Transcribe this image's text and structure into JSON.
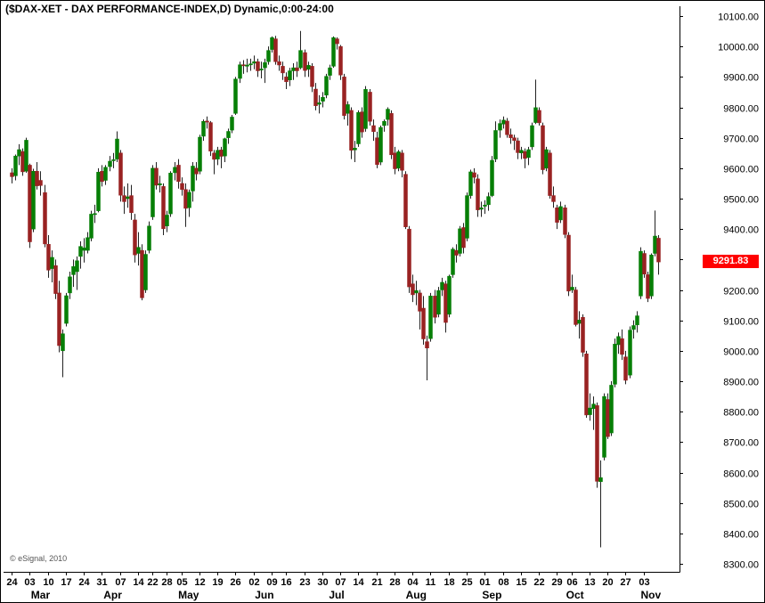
{
  "header": {
    "title": "($DAX-XET - DAX PERFORMANCE-INDEX,D) Dynamic,0:00-24:00"
  },
  "footer": {
    "copyright": "© eSignal, 2010"
  },
  "chart_data": {
    "type": "candlestick",
    "symbol": "$DAX-XET",
    "description": "DAX PERFORMANCE-INDEX",
    "interval": "D",
    "session": "0:00-24:00",
    "last_price": 9291.83,
    "last_price_label": "9291.83",
    "colors": {
      "up": "#067f06",
      "down": "#992222",
      "wick": "#222222",
      "axis": "#000000",
      "last_price_bg": "#ff0000",
      "last_price_text": "#ffffff"
    },
    "y_axis": {
      "min": 8300,
      "max": 10100,
      "step": 100,
      "ticks": [
        [
          10100,
          "10100.00"
        ],
        [
          10000,
          "10000.00"
        ],
        [
          9900,
          "9900.00"
        ],
        [
          9800,
          "9800.00"
        ],
        [
          9700,
          "9700.00"
        ],
        [
          9600,
          "9600.00"
        ],
        [
          9500,
          "9500.00"
        ],
        [
          9400,
          "9400.00"
        ],
        [
          9300,
          "9300.00"
        ],
        [
          9200,
          "9200.00"
        ],
        [
          9100,
          "9100.00"
        ],
        [
          9000,
          "9000.00"
        ],
        [
          8900,
          "8900.00"
        ],
        [
          8800,
          "8800.00"
        ],
        [
          8700,
          "8700.00"
        ],
        [
          8600,
          "8600.00"
        ],
        [
          8500,
          "8500.00"
        ],
        [
          8400,
          "8400.00"
        ],
        [
          8300,
          "8300.00"
        ]
      ]
    },
    "x_ticks": [
      [
        "24",
        0
      ],
      [
        "03",
        5
      ],
      [
        "10",
        10
      ],
      [
        "17",
        15
      ],
      [
        "24",
        20
      ],
      [
        "31",
        25
      ],
      [
        "07",
        30
      ],
      [
        "14",
        35
      ],
      [
        "22",
        39
      ],
      [
        "28",
        43
      ],
      [
        "05",
        47
      ],
      [
        "12",
        52
      ],
      [
        "19",
        57
      ],
      [
        "26",
        62
      ],
      [
        "02",
        67
      ],
      [
        "09",
        72
      ],
      [
        "16",
        76
      ],
      [
        "23",
        81
      ],
      [
        "30",
        86
      ],
      [
        "07",
        91
      ],
      [
        "14",
        96
      ],
      [
        "21",
        101
      ],
      [
        "28",
        106
      ],
      [
        "04",
        111
      ],
      [
        "11",
        116
      ],
      [
        "18",
        121
      ],
      [
        "25",
        126
      ],
      [
        "01",
        131
      ],
      [
        "08",
        136
      ],
      [
        "15",
        141
      ],
      [
        "22",
        146
      ],
      [
        "29",
        151
      ],
      [
        "06",
        155
      ],
      [
        "13",
        160
      ],
      [
        "20",
        165
      ],
      [
        "27",
        170
      ],
      [
        "03",
        175
      ]
    ],
    "month_labels": [
      [
        "Mar",
        8
      ],
      [
        "Apr",
        28
      ],
      [
        "May",
        49
      ],
      [
        "Jun",
        70
      ],
      [
        "Jul",
        90
      ],
      [
        "Aug",
        112
      ],
      [
        "Sep",
        133
      ],
      [
        "Oct",
        156
      ],
      [
        "Nov",
        177
      ]
    ],
    "candles": [
      [
        9585,
        9600,
        9550,
        9572
      ],
      [
        9575,
        9645,
        9560,
        9640
      ],
      [
        9640,
        9679,
        9610,
        9661
      ],
      [
        9655,
        9665,
        9575,
        9588
      ],
      [
        9590,
        9700,
        9585,
        9692
      ],
      [
        9610,
        9615,
        9338,
        9358
      ],
      [
        9400,
        9598,
        9390,
        9590
      ],
      [
        9590,
        9620,
        9530,
        9542
      ],
      [
        9560,
        9590,
        9510,
        9543
      ],
      [
        9520,
        9545,
        9340,
        9351
      ],
      [
        9350,
        9380,
        9240,
        9265
      ],
      [
        9270,
        9330,
        9225,
        9307
      ],
      [
        9280,
        9300,
        9170,
        9188
      ],
      [
        9190,
        9230,
        8995,
        9017
      ],
      [
        9000,
        9070,
        8913,
        9056
      ],
      [
        9090,
        9190,
        9080,
        9181
      ],
      [
        9190,
        9260,
        9170,
        9243
      ],
      [
        9250,
        9300,
        9210,
        9277
      ],
      [
        9260,
        9310,
        9200,
        9296
      ],
      [
        9310,
        9360,
        9270,
        9343
      ],
      [
        9330,
        9370,
        9290,
        9338
      ],
      [
        9330,
        9390,
        9320,
        9372
      ],
      [
        9370,
        9460,
        9360,
        9449
      ],
      [
        9450,
        9480,
        9420,
        9451
      ],
      [
        9460,
        9600,
        9455,
        9587
      ],
      [
        9590,
        9610,
        9540,
        9556
      ],
      [
        9560,
        9610,
        9545,
        9603
      ],
      [
        9605,
        9640,
        9590,
        9623
      ],
      [
        9625,
        9650,
        9600,
        9628
      ],
      [
        9630,
        9721,
        9620,
        9696
      ],
      [
        9650,
        9660,
        9490,
        9511
      ],
      [
        9510,
        9540,
        9450,
        9490
      ],
      [
        9500,
        9550,
        9470,
        9506
      ],
      [
        9510,
        9545,
        9430,
        9454
      ],
      [
        9430,
        9450,
        9290,
        9315
      ],
      [
        9320,
        9390,
        9280,
        9340
      ],
      [
        9330,
        9350,
        9166,
        9174
      ],
      [
        9200,
        9330,
        9190,
        9317
      ],
      [
        9330,
        9425,
        9320,
        9410
      ],
      [
        9440,
        9610,
        9430,
        9600
      ],
      [
        9600,
        9620,
        9530,
        9544
      ],
      [
        9545,
        9575,
        9520,
        9549
      ],
      [
        9540,
        9550,
        9380,
        9401
      ],
      [
        9410,
        9460,
        9390,
        9446
      ],
      [
        9450,
        9590,
        9440,
        9584
      ],
      [
        9585,
        9620,
        9560,
        9603
      ],
      [
        9610,
        9630,
        9533,
        9556
      ],
      [
        9550,
        9570,
        9510,
        9530
      ],
      [
        9530,
        9550,
        9407,
        9468
      ],
      [
        9470,
        9530,
        9440,
        9521
      ],
      [
        9525,
        9620,
        9490,
        9607
      ],
      [
        9600,
        9620,
        9560,
        9581
      ],
      [
        9590,
        9710,
        9580,
        9702
      ],
      [
        9705,
        9760,
        9690,
        9754
      ],
      [
        9755,
        9770,
        9730,
        9754
      ],
      [
        9750,
        9755,
        9640,
        9656
      ],
      [
        9650,
        9660,
        9580,
        9629
      ],
      [
        9630,
        9670,
        9610,
        9659
      ],
      [
        9660,
        9670,
        9600,
        9639
      ],
      [
        9640,
        9700,
        9620,
        9697
      ],
      [
        9700,
        9730,
        9680,
        9721
      ],
      [
        9725,
        9775,
        9715,
        9768
      ],
      [
        9780,
        9900,
        9775,
        9893
      ],
      [
        9895,
        9950,
        9880,
        9940
      ],
      [
        9940,
        9955,
        9910,
        9939
      ],
      [
        9935,
        9960,
        9915,
        9939
      ],
      [
        9940,
        9960,
        9920,
        9943
      ],
      [
        9945,
        9970,
        9925,
        9950
      ],
      [
        9950,
        9960,
        9900,
        9920
      ],
      [
        9925,
        9950,
        9895,
        9926
      ],
      [
        9930,
        9960,
        9880,
        9947
      ],
      [
        9950,
        10000,
        9940,
        9987
      ],
      [
        9990,
        10033,
        9980,
        10029
      ],
      [
        10025,
        10035,
        9940,
        9950
      ],
      [
        9950,
        9970,
        9920,
        9939
      ],
      [
        9935,
        9950,
        9890,
        9913
      ],
      [
        9900,
        9915,
        9860,
        9884
      ],
      [
        9890,
        9930,
        9870,
        9920
      ],
      [
        9920,
        9945,
        9890,
        9930
      ],
      [
        9930,
        9950,
        9900,
        9920
      ],
      [
        9930,
        10051,
        9925,
        9987
      ],
      [
        9980,
        9990,
        9900,
        9921
      ],
      [
        9925,
        9950,
        9900,
        9938
      ],
      [
        9935,
        9945,
        9850,
        9868
      ],
      [
        9860,
        9880,
        9790,
        9805
      ],
      [
        9810,
        9840,
        9780,
        9815
      ],
      [
        9820,
        9850,
        9800,
        9833
      ],
      [
        9840,
        9910,
        9830,
        9902
      ],
      [
        9905,
        9940,
        9890,
        9930
      ],
      [
        9935,
        10033,
        9930,
        10029
      ],
      [
        10025,
        10030,
        9990,
        10009
      ],
      [
        10000,
        10005,
        9890,
        9906
      ],
      [
        9900,
        9910,
        9760,
        9773
      ],
      [
        9780,
        9820,
        9740,
        9809
      ],
      [
        9790,
        9800,
        9630,
        9659
      ],
      [
        9660,
        9690,
        9620,
        9666
      ],
      [
        9680,
        9790,
        9670,
        9783
      ],
      [
        9785,
        9800,
        9700,
        9719
      ],
      [
        9730,
        9870,
        9720,
        9859
      ],
      [
        9850,
        9860,
        9740,
        9754
      ],
      [
        9740,
        9760,
        9690,
        9720
      ],
      [
        9700,
        9720,
        9600,
        9612
      ],
      [
        9620,
        9740,
        9610,
        9734
      ],
      [
        9740,
        9760,
        9720,
        9754
      ],
      [
        9760,
        9800,
        9740,
        9794
      ],
      [
        9780,
        9790,
        9630,
        9644
      ],
      [
        9650,
        9670,
        9580,
        9598
      ],
      [
        9600,
        9660,
        9590,
        9654
      ],
      [
        9650,
        9660,
        9570,
        9593
      ],
      [
        9580,
        9590,
        9400,
        9407
      ],
      [
        9400,
        9410,
        9190,
        9210
      ],
      [
        9220,
        9250,
        9160,
        9184
      ],
      [
        9190,
        9230,
        9150,
        9198
      ],
      [
        9190,
        9200,
        9070,
        9130
      ],
      [
        9140,
        9180,
        9020,
        9039
      ],
      [
        9030,
        9050,
        8903,
        9009
      ],
      [
        9040,
        9190,
        9030,
        9180
      ],
      [
        9180,
        9200,
        9090,
        9110
      ],
      [
        9120,
        9210,
        9110,
        9198
      ],
      [
        9200,
        9240,
        9180,
        9225
      ],
      [
        9220,
        9230,
        9060,
        9093
      ],
      [
        9120,
        9250,
        9110,
        9245
      ],
      [
        9250,
        9340,
        9240,
        9334
      ],
      [
        9330,
        9350,
        9290,
        9314
      ],
      [
        9320,
        9410,
        9310,
        9401
      ],
      [
        9405,
        9420,
        9320,
        9339
      ],
      [
        9370,
        9520,
        9360,
        9510
      ],
      [
        9510,
        9595,
        9500,
        9588
      ],
      [
        9585,
        9600,
        9550,
        9570
      ],
      [
        9565,
        9580,
        9440,
        9463
      ],
      [
        9465,
        9490,
        9440,
        9470
      ],
      [
        9475,
        9495,
        9450,
        9479
      ],
      [
        9480,
        9520,
        9460,
        9507
      ],
      [
        9510,
        9640,
        9505,
        9626
      ],
      [
        9630,
        9754,
        9620,
        9724
      ],
      [
        9725,
        9760,
        9700,
        9747
      ],
      [
        9745,
        9770,
        9730,
        9758
      ],
      [
        9755,
        9765,
        9700,
        9710
      ],
      [
        9710,
        9730,
        9680,
        9700
      ],
      [
        9700,
        9710,
        9660,
        9691
      ],
      [
        9690,
        9700,
        9630,
        9651
      ],
      [
        9650,
        9670,
        9630,
        9659
      ],
      [
        9655,
        9665,
        9600,
        9632
      ],
      [
        9635,
        9670,
        9610,
        9661
      ],
      [
        9670,
        9750,
        9660,
        9740
      ],
      [
        9750,
        9891,
        9745,
        9799
      ],
      [
        9790,
        9800,
        9740,
        9749
      ],
      [
        9740,
        9750,
        9580,
        9595
      ],
      [
        9600,
        9670,
        9590,
        9661
      ],
      [
        9650,
        9660,
        9500,
        9510
      ],
      [
        9510,
        9540,
        9470,
        9490
      ],
      [
        9470,
        9480,
        9400,
        9422
      ],
      [
        9430,
        9490,
        9420,
        9474
      ],
      [
        9470,
        9480,
        9370,
        9382
      ],
      [
        9380,
        9390,
        9180,
        9196
      ],
      [
        9200,
        9250,
        9190,
        9209
      ],
      [
        9200,
        9210,
        9080,
        9086
      ],
      [
        9090,
        9130,
        9040,
        9101
      ],
      [
        9110,
        9120,
        8980,
        8995
      ],
      [
        8990,
        9000,
        8780,
        8789
      ],
      [
        8790,
        8860,
        8770,
        8812
      ],
      [
        8810,
        8850,
        8740,
        8825
      ],
      [
        8820,
        8830,
        8550,
        8571
      ],
      [
        8570,
        8640,
        8354,
        8583
      ],
      [
        8650,
        8860,
        8640,
        8850
      ],
      [
        8840,
        8860,
        8710,
        8718
      ],
      [
        8730,
        8900,
        8720,
        8887
      ],
      [
        8890,
        9040,
        8880,
        9022
      ],
      [
        9020,
        9060,
        8990,
        9047
      ],
      [
        9040,
        9070,
        8970,
        8988
      ],
      [
        8980,
        9000,
        8890,
        8903
      ],
      [
        8920,
        9080,
        8910,
        9068
      ],
      [
        9070,
        9100,
        9040,
        9083
      ],
      [
        9085,
        9130,
        9060,
        9115
      ],
      [
        9180,
        9340,
        9170,
        9327
      ],
      [
        9320,
        9330,
        9240,
        9252
      ],
      [
        9250,
        9260,
        9160,
        9172
      ],
      [
        9180,
        9320,
        9170,
        9315
      ],
      [
        9320,
        9461,
        9310,
        9377
      ],
      [
        9370,
        9380,
        9250,
        9291.83
      ]
    ]
  }
}
